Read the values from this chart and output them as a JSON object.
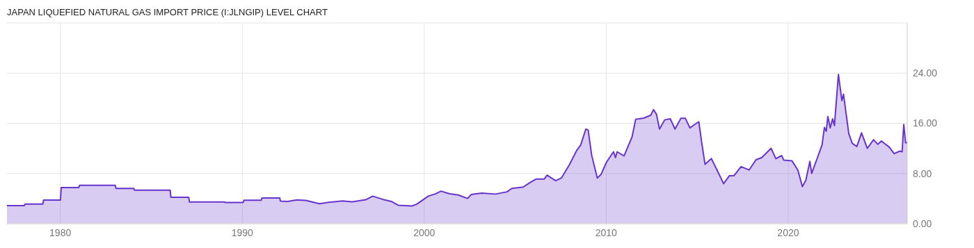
{
  "chart_data": {
    "type": "area",
    "title": "JAPAN LIQUEFIED NATURAL GAS IMPORT PRICE (I:JLNGIP) LEVEL CHART",
    "x": [
      1977.07,
      1978.02,
      1978.06,
      1979.04,
      1979.08,
      1980.01,
      1980.05,
      1981.02,
      1981.06,
      1983.02,
      1983.06,
      1984.04,
      1984.08,
      1986.04,
      1986.08,
      1987.06,
      1987.1,
      1989.03,
      1989.07,
      1990.05,
      1990.09,
      1991.04,
      1991.08,
      1992.06,
      1992.1,
      1992.5,
      1993.0,
      1993.5,
      1994.0,
      1994.24,
      1994.75,
      1995.51,
      1996.02,
      1996.78,
      1997.17,
      1997.8,
      1998.19,
      1998.57,
      1999.33,
      1999.59,
      2000.22,
      2000.61,
      2000.92,
      2001.37,
      2001.88,
      2002.38,
      2002.58,
      2003.15,
      2003.91,
      2004.55,
      2004.81,
      2005.44,
      2005.82,
      2006.14,
      2006.59,
      2006.75,
      2007.22,
      2007.54,
      2007.99,
      2008.37,
      2008.6,
      2008.88,
      2009.01,
      2009.2,
      2009.51,
      2009.71,
      2010.02,
      2010.4,
      2010.51,
      2010.6,
      2010.98,
      2011.42,
      2011.62,
      2011.81,
      2012.06,
      2012.44,
      2012.6,
      2012.76,
      2012.93,
      2013.21,
      2013.52,
      2013.78,
      2014.1,
      2014.35,
      2014.6,
      2014.86,
      2015.09,
      2015.24,
      2015.43,
      2015.78,
      2016.07,
      2016.45,
      2016.77,
      2017.02,
      2017.41,
      2017.85,
      2018.23,
      2018.55,
      2019.06,
      2019.32,
      2019.64,
      2019.76,
      2020.21,
      2020.53,
      2020.78,
      2020.97,
      2021.19,
      2021.29,
      2021.61,
      2021.86,
      2021.99,
      2022.09,
      2022.18,
      2022.31,
      2022.44,
      2022.54,
      2022.76,
      2022.95,
      2023.04,
      2023.33,
      2023.52,
      2023.77,
      2024.03,
      2024.35,
      2024.69,
      2024.92,
      2025.12,
      2025.56,
      2025.82,
      2026.14,
      2026.26,
      2026.35,
      2026.45,
      2026.54
    ],
    "series": [
      {
        "color": "#6633cc",
        "values": [
          2.87,
          2.87,
          3.12,
          3.12,
          3.77,
          3.77,
          5.77,
          5.77,
          6.13,
          6.13,
          5.62,
          5.62,
          5.33,
          5.33,
          4.2,
          4.2,
          3.45,
          3.45,
          3.37,
          3.37,
          3.74,
          3.74,
          4.1,
          4.1,
          3.59,
          3.55,
          3.8,
          3.7,
          3.35,
          3.19,
          3.4,
          3.63,
          3.48,
          3.81,
          4.39,
          3.81,
          3.55,
          2.94,
          2.83,
          3.12,
          4.39,
          4.75,
          5.19,
          4.79,
          4.57,
          4.03,
          4.64,
          4.86,
          4.72,
          5.08,
          5.62,
          5.84,
          6.57,
          7.11,
          7.11,
          7.73,
          6.86,
          7.29,
          9.47,
          11.64,
          12.55,
          15.09,
          14.9,
          10.92,
          7.29,
          7.83,
          9.83,
          11.46,
          10.55,
          11.46,
          10.81,
          13.82,
          16.65,
          16.72,
          16.83,
          17.27,
          18.17,
          17.45,
          15.09,
          16.54,
          16.72,
          15.09,
          16.79,
          16.79,
          15.27,
          15.81,
          16.25,
          13.09,
          9.47,
          10.37,
          8.67,
          6.38,
          7.65,
          7.65,
          9.1,
          8.56,
          10.19,
          10.55,
          12.01,
          10.37,
          10.85,
          10.12,
          10.01,
          8.56,
          5.91,
          6.93,
          9.94,
          8.02,
          10.55,
          12.55,
          15.34,
          14.73,
          17.08,
          15.27,
          16.72,
          15.63,
          23.79,
          19.62,
          20.64,
          14.36,
          12.8,
          12.3,
          14.47,
          12.01,
          13.38,
          12.66,
          13.17,
          12.19,
          11.17,
          11.57,
          11.46,
          15.81,
          12.91,
          12.91
        ]
      }
    ],
    "xlim": [
      1977.07,
      2026.54
    ],
    "xticks": [
      1980,
      1990,
      2000,
      2010,
      2020
    ],
    "ylim": [
      0,
      32
    ],
    "yticks": [
      {
        "value": 0,
        "label": "0.00"
      },
      {
        "value": 8,
        "label": "8.00"
      },
      {
        "value": 16,
        "label": "16.00"
      },
      {
        "value": 24,
        "label": "24.00"
      },
      {
        "value": 32,
        "label": null
      }
    ],
    "grid": true
  }
}
